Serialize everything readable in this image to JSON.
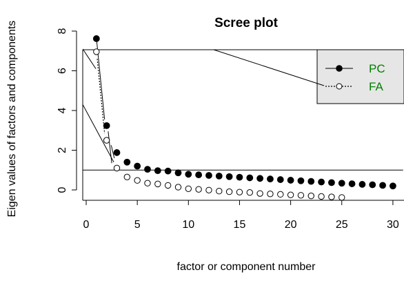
{
  "chart_data": {
    "type": "scatter",
    "title": "Scree plot",
    "xlabel": "factor or component number",
    "ylabel": "Eigen values of factors and components",
    "xlim": [
      -0.2,
      31
    ],
    "ylim": [
      -0.45,
      8.3
    ],
    "x_ticks": [
      0,
      5,
      10,
      15,
      20,
      25,
      30
    ],
    "y_ticks": [
      0,
      2,
      4,
      6,
      8
    ],
    "reference_line_y": 1,
    "legend_position": "top-right",
    "legend_color": "#008000",
    "series": [
      {
        "name": "PC",
        "marker": "filled-circle",
        "x": [
          1,
          2,
          3,
          4,
          5,
          6,
          7,
          8,
          9,
          10,
          11,
          12,
          13,
          14,
          15,
          16,
          17,
          18,
          19,
          20,
          21,
          22,
          23,
          24,
          25,
          26,
          27,
          28,
          29,
          30
        ],
        "y": [
          7.62,
          3.24,
          1.88,
          1.4,
          1.2,
          1.04,
          0.97,
          0.95,
          0.86,
          0.79,
          0.76,
          0.73,
          0.7,
          0.67,
          0.64,
          0.61,
          0.58,
          0.55,
          0.52,
          0.49,
          0.46,
          0.43,
          0.4,
          0.37,
          0.34,
          0.31,
          0.28,
          0.26,
          0.23,
          0.2
        ]
      },
      {
        "name": "FA",
        "marker": "open-circle",
        "x": [
          1,
          2,
          3,
          4,
          5,
          6,
          7,
          8,
          9,
          10,
          11,
          12,
          13,
          14,
          15,
          16,
          17,
          18,
          19,
          20,
          21,
          22,
          23,
          24,
          25
        ],
        "y": [
          6.96,
          2.5,
          1.1,
          0.65,
          0.48,
          0.34,
          0.3,
          0.23,
          0.14,
          0.06,
          0.03,
          -0.01,
          -0.06,
          -0.09,
          -0.11,
          -0.13,
          -0.18,
          -0.2,
          -0.22,
          -0.25,
          -0.27,
          -0.3,
          -0.33,
          -0.35,
          -0.38
        ]
      }
    ]
  }
}
